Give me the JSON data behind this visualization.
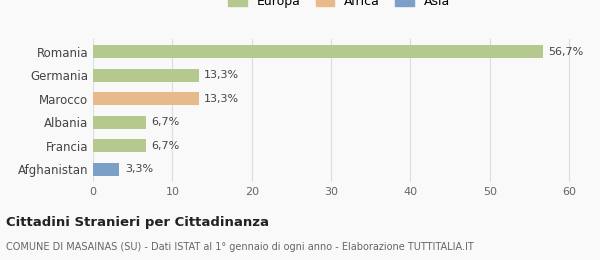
{
  "categories": [
    "Romania",
    "Germania",
    "Marocco",
    "Albania",
    "Francia",
    "Afghanistan"
  ],
  "values": [
    56.7,
    13.3,
    13.3,
    6.7,
    6.7,
    3.3
  ],
  "labels": [
    "56,7%",
    "13,3%",
    "13,3%",
    "6,7%",
    "6,7%",
    "3,3%"
  ],
  "colors": [
    "#b5c98e",
    "#b5c98e",
    "#e8b98a",
    "#b5c98e",
    "#b5c98e",
    "#7b9fc7"
  ],
  "legend": [
    {
      "label": "Europa",
      "color": "#b5c98e"
    },
    {
      "label": "Africa",
      "color": "#e8b98a"
    },
    {
      "label": "Asia",
      "color": "#7b9fc7"
    }
  ],
  "xlim": [
    0,
    62
  ],
  "xticks": [
    0,
    10,
    20,
    30,
    40,
    50,
    60
  ],
  "title": "Cittadini Stranieri per Cittadinanza",
  "subtitle": "COMUNE DI MASAINAS (SU) - Dati ISTAT al 1° gennaio di ogni anno - Elaborazione TUTTITALIA.IT",
  "bg_color": "#f9f9f9",
  "grid_color": "#dddddd",
  "bar_height": 0.55
}
